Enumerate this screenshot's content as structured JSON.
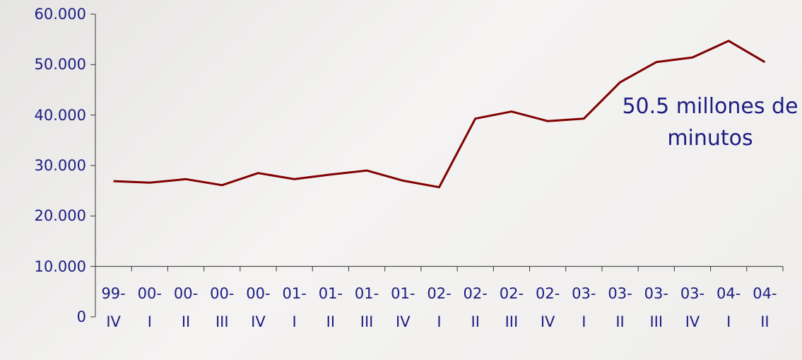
{
  "chart_data": {
    "type": "line",
    "categories": [
      "99-IV",
      "00-I",
      "00-II",
      "00-III",
      "00-IV",
      "01-I",
      "01-II",
      "01-III",
      "01-IV",
      "02-I",
      "02-II",
      "02-III",
      "02-IV",
      "03-I",
      "03-II",
      "03-III",
      "03-IV",
      "04-I",
      "04-II"
    ],
    "series": [
      {
        "color": "#800000",
        "values": [
          26900,
          26600,
          27300,
          26100,
          28500,
          27300,
          28200,
          29000,
          27000,
          25700,
          39300,
          40700,
          38800,
          39300,
          46500,
          50500,
          51400,
          54700,
          50500
        ]
      }
    ],
    "ylim": [
      0,
      60000
    ],
    "yticks": [
      0,
      {
        "value": 10000,
        "label": "10.000"
      },
      {
        "value": 20000,
        "label": "20.000"
      },
      {
        "value": 30000,
        "label": "30.000"
      },
      {
        "value": 40000,
        "label": "40.000"
      },
      {
        "value": 50000,
        "label": "50.000"
      },
      {
        "value": 60000,
        "label": "60.000"
      }
    ],
    "xaxis_crosses": 10000,
    "annotation": "50.5 millones de minutos"
  }
}
